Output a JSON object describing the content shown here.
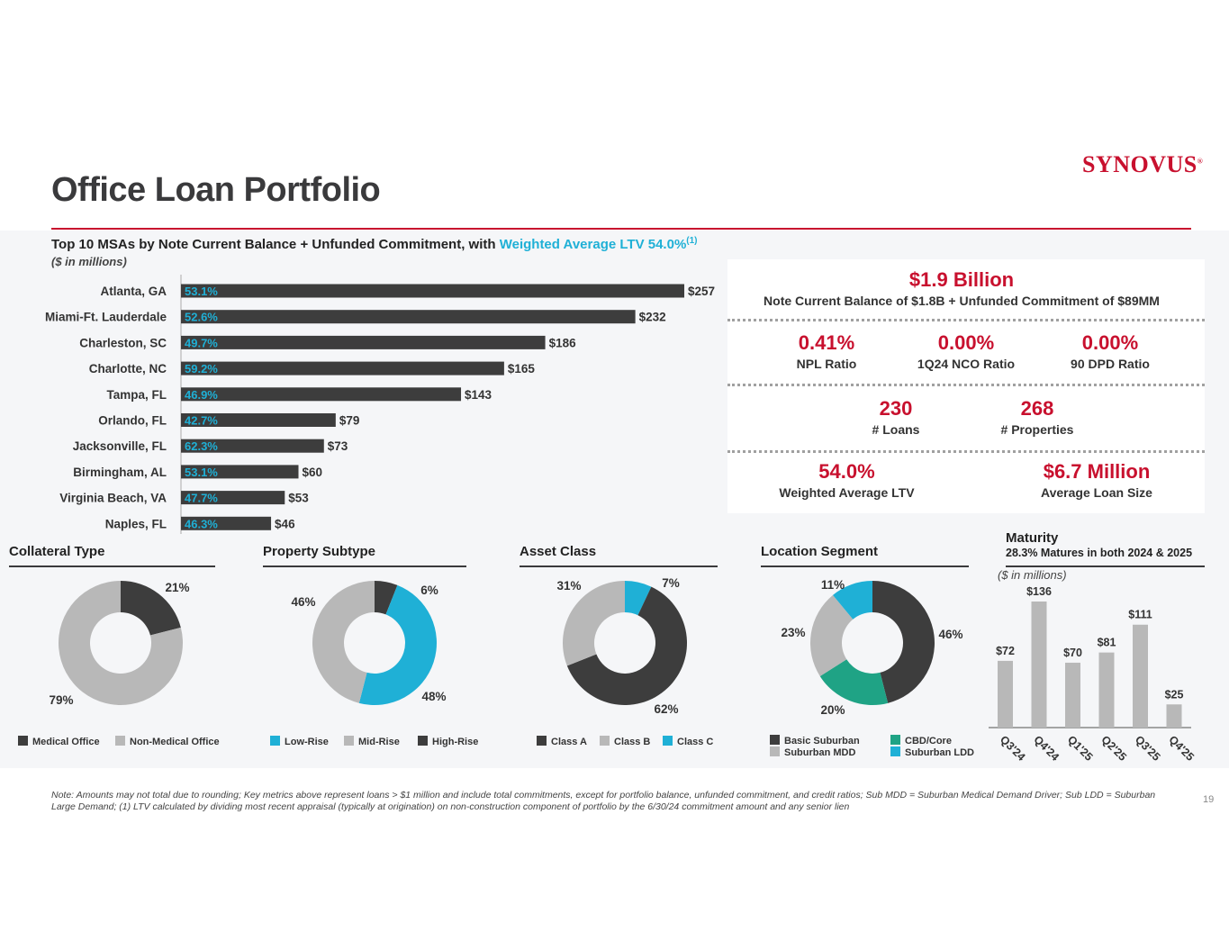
{
  "page": {
    "title": "Office Loan Portfolio",
    "logo_text": "SYNOVUS",
    "page_number": "19",
    "note": "Note: Amounts may not total due to rounding; Key metrics above represent loans > $1 million and include total commitments, except for portfolio balance, unfunded commitment, and credit ratios; Sub MDD = Suburban Medical Demand Driver; Sub LDD = Suburban Large Demand; (1) LTV calculated by dividing most recent appraisal (typically at origination) on non-construction component of portfolio by the 6/30/24 commitment amount and any senior lien"
  },
  "colors": {
    "brand_red": "#c8102e",
    "accent_blue": "#1fb0d6",
    "dark": "#3d3d3d",
    "gray": "#b8b8b8",
    "teal": "#1fa385"
  },
  "msa": {
    "heading_main": "Top 10 MSAs by Note Current Balance + Unfunded Commitment,",
    "heading_with": "with",
    "heading_highlight": "Weighted Average LTV 54.0%",
    "heading_sup": "(1)",
    "subheading": "($ in millions)"
  },
  "kpis": {
    "total_value": "$1.9 Billion",
    "total_label": "Note Current Balance of $1.8B + Unfunded Commitment of $89MM",
    "npl_value": "0.41%",
    "npl_label": "NPL Ratio",
    "nco_value": "0.00%",
    "nco_label": "1Q24 NCO Ratio",
    "dpd_value": "0.00%",
    "dpd_label": "90 DPD Ratio",
    "loans_value": "230",
    "loans_label": "# Loans",
    "props_value": "268",
    "props_label": "# Properties",
    "ltv_value": "54.0%",
    "ltv_label": "Weighted Average LTV",
    "avg_value": "$6.7 Million",
    "avg_label": "Average Loan Size"
  },
  "sections": {
    "collateral": "Collateral Type",
    "subtype": "Property Subtype",
    "asset": "Asset Class",
    "location": "Location Segment",
    "maturity": "Maturity",
    "maturity_sub": "28.3% Matures in both 2024 & 2025",
    "maturity_unit": "($ in millions)"
  },
  "chart_data": [
    {
      "type": "bar",
      "orientation": "horizontal",
      "categories": [
        "Atlanta, GA",
        "Miami-Ft. Lauderdale",
        "Charleston, SC",
        "Charlotte, NC",
        "Tampa, FL",
        "Orlando, FL",
        "Jacksonville, FL",
        "Birmingham, AL",
        "Virginia Beach, VA",
        "Naples, FL"
      ],
      "values": [
        257,
        232,
        186,
        165,
        143,
        79,
        73,
        60,
        53,
        46
      ],
      "value_labels": [
        "$257",
        "$232",
        "$186",
        "$165",
        "$143",
        "$79",
        "$73",
        "$60",
        "$53",
        "$46"
      ],
      "ltv_labels": [
        "53.1%",
        "52.6%",
        "49.7%",
        "59.2%",
        "46.9%",
        "42.7%",
        "62.3%",
        "53.1%",
        "47.7%",
        "46.3%"
      ],
      "xlim": [
        0,
        257
      ]
    },
    {
      "type": "pie",
      "title": "Collateral Type",
      "slices": [
        {
          "name": "Medical Office",
          "value": 21,
          "label": "21%",
          "color": "#3d3d3d"
        },
        {
          "name": "Non-Medical Office",
          "value": 79,
          "label": "79%",
          "color": "#b8b8b8"
        }
      ]
    },
    {
      "type": "pie",
      "title": "Property Subtype",
      "slices": [
        {
          "name": "High-Rise",
          "value": 6,
          "label": "6%",
          "color": "#3d3d3d"
        },
        {
          "name": "Low-Rise",
          "value": 48,
          "label": "48%",
          "color": "#1fb0d6"
        },
        {
          "name": "Mid-Rise",
          "value": 46,
          "label": "46%",
          "color": "#b8b8b8"
        }
      ],
      "legend_order": [
        "Low-Rise",
        "Mid-Rise",
        "High-Rise"
      ]
    },
    {
      "type": "pie",
      "title": "Asset Class",
      "slices": [
        {
          "name": "Class C",
          "value": 7,
          "label": "7%",
          "color": "#1fb0d6"
        },
        {
          "name": "Class A",
          "value": 62,
          "label": "62%",
          "color": "#3d3d3d"
        },
        {
          "name": "Class B",
          "value": 31,
          "label": "31%",
          "color": "#b8b8b8"
        }
      ],
      "legend_order": [
        "Class A",
        "Class B",
        "Class C"
      ]
    },
    {
      "type": "pie",
      "title": "Location Segment",
      "slices": [
        {
          "name": "Basic Suburban",
          "value": 46,
          "label": "46%",
          "color": "#3d3d3d"
        },
        {
          "name": "CBD/Core",
          "value": 20,
          "label": "20%",
          "color": "#1fa385"
        },
        {
          "name": "Suburban MDD",
          "value": 23,
          "label": "23%",
          "color": "#b8b8b8"
        },
        {
          "name": "Suburban LDD",
          "value": 11,
          "label": "11%",
          "color": "#1fb0d6"
        }
      ]
    },
    {
      "type": "bar",
      "title": "Maturity",
      "categories": [
        "Q3'24",
        "Q4'24",
        "Q1'25",
        "Q2'25",
        "Q3'25",
        "Q4'25"
      ],
      "values": [
        72,
        136,
        70,
        81,
        111,
        25
      ],
      "value_labels": [
        "$72",
        "$136",
        "$70",
        "$81",
        "$111",
        "$25"
      ],
      "ylim": [
        0,
        136
      ]
    }
  ]
}
